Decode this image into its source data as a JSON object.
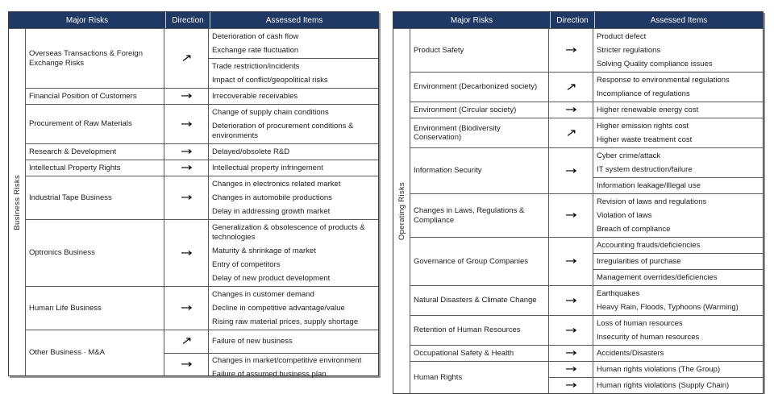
{
  "header": {
    "major_risks": "Major Risks",
    "direction": "Direction",
    "assessed_items": "Assessed Items"
  },
  "arrows": {
    "up": "↗",
    "flat": "→"
  },
  "colors": {
    "header_bg": "#1f3864",
    "header_text": "#ffffff",
    "border": "#595959"
  },
  "panels": [
    {
      "group_label": "Business Risks",
      "rows": [
        {
          "risk": "Overseas Transactions & Foreign Exchange Risks",
          "sub_rows": [
            {
              "direction": "up",
              "cells": [
                [
                  "Deterioration of cash flow",
                  "Exchange rate fluctuation"
                ],
                [
                  "Trade restriction/incidents",
                  "Impact of conflict/geopolitical risks"
                ]
              ]
            }
          ]
        },
        {
          "risk": "Financial Position of Customers",
          "sub_rows": [
            {
              "direction": "flat",
              "cells": [
                [
                  "Irrecoverable receivables"
                ]
              ]
            }
          ]
        },
        {
          "risk": "Procurement of Raw Materials",
          "sub_rows": [
            {
              "direction": "flat",
              "cells": [
                [
                  "Change of supply chain conditions",
                  "Deterioration of procurement conditions & environments"
                ]
              ]
            }
          ]
        },
        {
          "risk": "Research & Development",
          "sub_rows": [
            {
              "direction": "flat",
              "cells": [
                [
                  "Delayed/obsolete R&D"
                ]
              ]
            }
          ]
        },
        {
          "risk": "Intellectual Property Rights",
          "sub_rows": [
            {
              "direction": "flat",
              "cells": [
                [
                  "Intellectual property infringement"
                ]
              ]
            }
          ]
        },
        {
          "risk": "Industrial Tape Business",
          "sub_rows": [
            {
              "direction": "flat",
              "cells": [
                [
                  "Changes in electronics related market",
                  "Changes in automobile productions",
                  "Delay in addressing growth market"
                ]
              ]
            }
          ]
        },
        {
          "risk": "Optronics Business",
          "sub_rows": [
            {
              "direction": "flat",
              "cells": [
                [
                  "Generalization & obsolescence of products & technologies",
                  "Maturity & shrinkage of market",
                  "Entry of competitors",
                  "Delay of new product development"
                ]
              ]
            }
          ]
        },
        {
          "risk": "Human Life Business",
          "sub_rows": [
            {
              "direction": "flat",
              "cells": [
                [
                  "Changes in customer demand",
                  "Decline in competitive advantage/value",
                  "Rising raw material prices, supply shortage"
                ]
              ]
            }
          ]
        },
        {
          "risk": "Other Business · M&A",
          "sub_rows": [
            {
              "direction": "up",
              "cells": [
                [
                  "Failure of new business"
                ]
              ]
            },
            {
              "direction": "flat",
              "cells": [
                [
                  "Changes in market/competitive environment",
                  "Failure of assumed business plan"
                ]
              ]
            }
          ]
        }
      ]
    },
    {
      "group_label": "Operating Risks",
      "rows": [
        {
          "risk": "Product Safety",
          "sub_rows": [
            {
              "direction": "flat",
              "cells": [
                [
                  "Product defect",
                  "Stricter regulations",
                  "Solving Quality compliance issues"
                ]
              ]
            }
          ]
        },
        {
          "risk": "Environment (Decarbonized society)",
          "sub_rows": [
            {
              "direction": "up",
              "cells": [
                [
                  "Response to environmental regulations",
                  "Incompliance of regulations"
                ]
              ]
            }
          ]
        },
        {
          "risk": "Environment (Circular society)",
          "sub_rows": [
            {
              "direction": "flat",
              "cells": [
                [
                  "Higher renewable energy cost"
                ]
              ]
            }
          ]
        },
        {
          "risk": "Environment (Biodiversity Conservation)",
          "sub_rows": [
            {
              "direction": "up",
              "cells": [
                [
                  "Higher emission rights cost",
                  "Higher waste treatment cost"
                ]
              ]
            }
          ]
        },
        {
          "risk": "Information Security",
          "sub_rows": [
            {
              "direction": "flat",
              "cells": [
                [
                  "Cyber crime/attack",
                  "IT system destruction/failure"
                ],
                [
                  "Information leakage/Illegal use"
                ]
              ]
            }
          ]
        },
        {
          "risk": "Changes in Laws, Regulations & Compliance",
          "sub_rows": [
            {
              "direction": "flat",
              "cells": [
                [
                  "Revision of laws and regulations",
                  "Violation of laws",
                  "Breach of compliance"
                ]
              ]
            }
          ]
        },
        {
          "risk": "Governance of Group Companies",
          "sub_rows": [
            {
              "direction": "flat",
              "cells": [
                [
                  "Accounting frauds/deficiencies"
                ],
                [
                  "Irregularities of purchase"
                ],
                [
                  "Management overrides/deficiencies"
                ]
              ]
            }
          ]
        },
        {
          "risk": "Natural Disasters & Climate Change",
          "sub_rows": [
            {
              "direction": "flat",
              "cells": [
                [
                  "Earthquakes",
                  "Heavy Rain, Floods, Typhoons (Warming)"
                ]
              ]
            }
          ]
        },
        {
          "risk": "Retention of Human Resources",
          "sub_rows": [
            {
              "direction": "flat",
              "cells": [
                [
                  "Loss of human resources",
                  "Insecurity of human resources"
                ]
              ]
            }
          ]
        },
        {
          "risk": "Occupational Safety & Health",
          "sub_rows": [
            {
              "direction": "flat",
              "cells": [
                [
                  "Accidents/Disasters"
                ]
              ]
            }
          ]
        },
        {
          "risk": "Human Rights",
          "sub_rows": [
            {
              "direction": "flat",
              "cells": [
                [
                  "Human rights violations (The Group)"
                ]
              ]
            },
            {
              "direction": "flat",
              "cells": [
                [
                  "Human rights violations (Supply Chain)"
                ]
              ]
            }
          ]
        }
      ]
    }
  ]
}
